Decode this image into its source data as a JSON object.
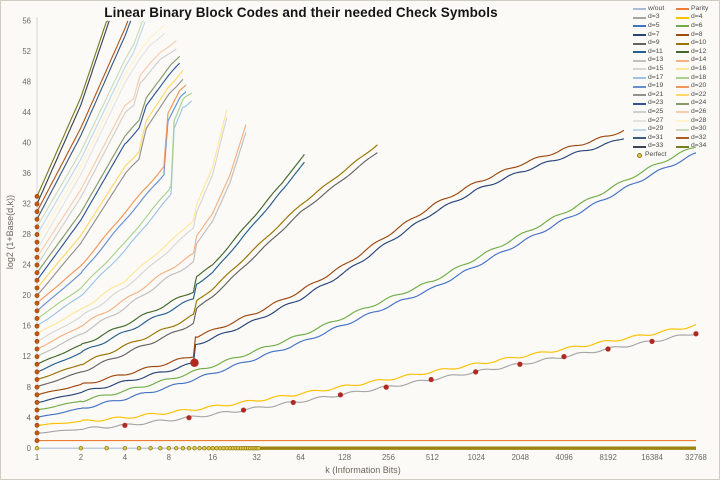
{
  "title": "Linear Binary Block Codes and their needed Check Symbols",
  "axes": {
    "x": {
      "label": "k (Information Bits)",
      "scale": "log2",
      "range": [
        1,
        32768
      ],
      "ticks": [
        1,
        2,
        4,
        8,
        16,
        32,
        64,
        128,
        256,
        512,
        1024,
        2048,
        4096,
        8192,
        16384,
        32768
      ]
    },
    "y": {
      "label": "log2  (1+Base(d,k))",
      "range": [
        0,
        56
      ],
      "ticks": [
        0,
        4,
        8,
        12,
        16,
        20,
        24,
        28,
        32,
        36,
        40,
        44,
        48,
        52,
        56
      ]
    }
  },
  "legend": {
    "left": [
      "w/out",
      "d=3",
      "d=5",
      "d=7",
      "d=9",
      "d=11",
      "d=13",
      "d=15",
      "d=17",
      "d=19",
      "d=21",
      "d=23",
      "d=25",
      "d=27",
      "d=29",
      "d=31",
      "d=33"
    ],
    "right": [
      "Parity",
      "d=4",
      "d=6",
      "d=8",
      "d=10",
      "d=12",
      "d=14",
      "d=16",
      "d=18",
      "d=20",
      "d=22",
      "d=24",
      "d=26",
      "d=28",
      "d=30",
      "d=32",
      "d=34"
    ],
    "perfect_label": "Perfect"
  },
  "chart_data": {
    "type": "line",
    "title": "Linear Binary Block Codes and their needed Check Symbols",
    "xlabel": "k (Information Bits)",
    "ylabel": "log2  (1+Base(d,k))",
    "x_scale": "log2",
    "xlim": [
      1,
      32768
    ],
    "ylim": [
      0,
      56
    ],
    "grid": false,
    "legend_position": "top-right",
    "note": "y = check symbols needed; anchor points are values read from the plot, lines interpolated in log2(k)",
    "series": [
      {
        "name": "w/out",
        "color": "#a9bcd6",
        "wiggle": false,
        "points": [
          [
            1,
            0
          ],
          [
            32768,
            0
          ]
        ]
      },
      {
        "name": "Parity",
        "color": "#ED7D31",
        "wiggle": false,
        "points": [
          [
            1,
            1
          ],
          [
            32768,
            1
          ]
        ]
      },
      {
        "name": "d=3",
        "color": "#A5A5A5",
        "points": [
          [
            1,
            2
          ],
          [
            2,
            2.5
          ],
          [
            4,
            3
          ],
          [
            11,
            4
          ],
          [
            26,
            5
          ],
          [
            57,
            6
          ],
          [
            120,
            7
          ],
          [
            247,
            8
          ],
          [
            502,
            9
          ],
          [
            1013,
            10
          ],
          [
            2036,
            11
          ],
          [
            4083,
            12
          ],
          [
            8178,
            13
          ],
          [
            16369,
            14
          ],
          [
            32768,
            15.1
          ]
        ]
      },
      {
        "name": "d=4",
        "color": "#FFC000",
        "base": "d=3",
        "offset": 1
      },
      {
        "name": "d=5",
        "color": "#4472C4",
        "points": [
          [
            1,
            4
          ],
          [
            2,
            5.2
          ],
          [
            4,
            6.5
          ],
          [
            8,
            8
          ],
          [
            16,
            9.8
          ],
          [
            32,
            11.8
          ],
          [
            64,
            13.8
          ],
          [
            128,
            16.2
          ],
          [
            256,
            18.6
          ],
          [
            512,
            20.9
          ],
          [
            1024,
            23.9
          ],
          [
            2048,
            26.9
          ],
          [
            4096,
            29.9
          ],
          [
            8192,
            32.9
          ],
          [
            16384,
            35.9
          ],
          [
            32768,
            38.6
          ]
        ]
      },
      {
        "name": "d=6",
        "color": "#70AD47",
        "base": "d=5",
        "offset": 1
      },
      {
        "name": "d=7",
        "color": "#264478",
        "points": [
          [
            1,
            6
          ],
          [
            2,
            7.3
          ],
          [
            4,
            8.7
          ],
          [
            8,
            10.2
          ],
          [
            11.8,
            11.1
          ],
          [
            12.2,
            13.6
          ],
          [
            16,
            14.4
          ],
          [
            32,
            16.8
          ],
          [
            64,
            19.6
          ],
          [
            128,
            23
          ],
          [
            256,
            27
          ],
          [
            512,
            30.8
          ],
          [
            1024,
            33.8
          ],
          [
            2048,
            36.2
          ],
          [
            4096,
            38.2
          ],
          [
            8192,
            39.9
          ],
          [
            10500,
            40.7
          ]
        ]
      },
      {
        "name": "d=8",
        "color": "#9E480E",
        "base": "d=7",
        "offset": 1
      },
      {
        "name": "d=9",
        "color": "#636363",
        "points": [
          [
            1,
            8
          ],
          [
            2,
            10
          ],
          [
            4,
            12.4
          ],
          [
            8,
            14.8
          ],
          [
            11.8,
            16.4
          ],
          [
            12.4,
            18.3
          ],
          [
            16,
            19.9
          ],
          [
            32,
            25.4
          ],
          [
            64,
            30.9
          ],
          [
            128,
            35.4
          ],
          [
            215,
            38.8
          ]
        ]
      },
      {
        "name": "d=10",
        "color": "#997300",
        "base": "d=9",
        "offset": 1
      },
      {
        "name": "d=11",
        "color": "#255E91",
        "points": [
          [
            1,
            10
          ],
          [
            2,
            12.5
          ],
          [
            4,
            15.2
          ],
          [
            8,
            18
          ],
          [
            11.8,
            19.6
          ],
          [
            12.4,
            21.5
          ],
          [
            16,
            23
          ],
          [
            32,
            29.8
          ],
          [
            48,
            33.8
          ],
          [
            68,
            37.5
          ]
        ]
      },
      {
        "name": "d=12",
        "color": "#43682B",
        "base": "d=11",
        "offset": 1
      },
      {
        "name": "d=13",
        "color": "#BFBFBF",
        "points": [
          [
            1,
            12
          ],
          [
            2,
            15
          ],
          [
            4,
            18.4
          ],
          [
            8,
            22.4
          ],
          [
            11.8,
            24.4
          ],
          [
            12.4,
            26.8
          ],
          [
            16,
            29.8
          ],
          [
            21,
            34.8
          ],
          [
            27,
            41.4
          ]
        ]
      },
      {
        "name": "d=14",
        "color": "#F4B183",
        "base": "d=13",
        "offset": 1
      },
      {
        "name": "d=15",
        "color": "#D6D6D6",
        "points": [
          [
            1,
            14
          ],
          [
            2,
            17.2
          ],
          [
            4,
            21
          ],
          [
            8,
            25.9
          ],
          [
            11.8,
            28.9
          ],
          [
            12.4,
            30.9
          ],
          [
            16,
            35.9
          ],
          [
            20,
            43.4
          ]
        ]
      },
      {
        "name": "d=16",
        "color": "#FFE699",
        "base": "d=15",
        "offset": 1
      },
      {
        "name": "d=17",
        "color": "#9DC3E6",
        "points": [
          [
            1,
            16
          ],
          [
            2,
            20
          ],
          [
            4,
            25.9
          ],
          [
            8,
            32.9
          ],
          [
            8.3,
            33.4
          ],
          [
            8.7,
            41.9
          ],
          [
            10,
            44.7
          ],
          [
            11.5,
            45.4
          ]
        ]
      },
      {
        "name": "d=18",
        "color": "#A9D18E",
        "base": "d=17",
        "offset": 1
      },
      {
        "name": "d=19",
        "color": "#698ED0",
        "points": [
          [
            1,
            18
          ],
          [
            2,
            22.9
          ],
          [
            4,
            29.9
          ],
          [
            7.4,
            35.9
          ],
          [
            7.9,
            42.9
          ],
          [
            9.5,
            45.9
          ],
          [
            10.5,
            46.7
          ]
        ]
      },
      {
        "name": "d=20",
        "color": "#F1975A",
        "base": "d=19",
        "offset": 1
      },
      {
        "name": "d=21",
        "color": "#929292",
        "points": [
          [
            1,
            20
          ],
          [
            2,
            26.9
          ],
          [
            4,
            35.9
          ],
          [
            5,
            37.9
          ],
          [
            5.6,
            41.9
          ],
          [
            8,
            46.4
          ],
          [
            10,
            48.4
          ]
        ]
      },
      {
        "name": "d=22",
        "color": "#FFD966",
        "base": "d=21",
        "offset": 1
      },
      {
        "name": "d=23",
        "color": "#2F5597",
        "points": [
          [
            1,
            22
          ],
          [
            2,
            29.9
          ],
          [
            4,
            39.9
          ],
          [
            5,
            41.9
          ],
          [
            5.6,
            44.9
          ],
          [
            8,
            48.9
          ],
          [
            9.5,
            50.4
          ]
        ]
      },
      {
        "name": "d=24",
        "color": "#87986A",
        "base": "d=23",
        "offset": 1
      },
      {
        "name": "d=25",
        "color": "#CFCFCF",
        "points": [
          [
            1,
            24
          ],
          [
            2,
            32.9
          ],
          [
            4,
            43.9
          ],
          [
            4.6,
            44.9
          ],
          [
            5.1,
            47.9
          ],
          [
            7,
            50.9
          ],
          [
            9,
            52.4
          ]
        ]
      },
      {
        "name": "d=26",
        "color": "#F8CBAD",
        "base": "d=25",
        "offset": 1
      },
      {
        "name": "d=27",
        "color": "#E3E3E3",
        "points": [
          [
            1,
            26
          ],
          [
            2,
            35.9
          ],
          [
            4,
            47.9
          ],
          [
            5,
            50.9
          ],
          [
            6,
            52.9
          ],
          [
            7.5,
            54.4
          ]
        ]
      },
      {
        "name": "d=28",
        "color": "#FFF2CC",
        "base": "d=27",
        "offset": 1
      },
      {
        "name": "d=29",
        "color": "#BDD7EE",
        "points": [
          [
            1,
            28
          ],
          [
            2,
            37.9
          ],
          [
            4,
            49.9
          ],
          [
            4.6,
            51.9
          ],
          [
            5.5,
            55.9
          ]
        ]
      },
      {
        "name": "d=30",
        "color": "#C9DDBA",
        "base": "d=29",
        "offset": 1
      },
      {
        "name": "d=31",
        "color": "#3D5C84",
        "points": [
          [
            1,
            30
          ],
          [
            2,
            41
          ],
          [
            4,
            54
          ],
          [
            4.5,
            56.6
          ]
        ]
      },
      {
        "name": "d=32",
        "color": "#AD5B22",
        "base": "d=31",
        "offset": 1
      },
      {
        "name": "d=33",
        "color": "#3A4557",
        "points": [
          [
            1,
            32
          ],
          [
            2,
            45
          ],
          [
            3.2,
            56.6
          ]
        ]
      },
      {
        "name": "d=34",
        "color": "#7C7C24",
        "base": "d=33",
        "offset": 1
      }
    ],
    "perfect_markers": {
      "axis_row": {
        "y": 0,
        "k_dots_from": 1,
        "k_dots_to": 33,
        "dense_line_from": 30,
        "dense_line_to": 32768,
        "dot_fill": "#e0c84f",
        "dot_ring": "#8f7d14",
        "dense_color": "#9c8412"
      },
      "k1_column": {
        "k": 1,
        "y_from": 1,
        "y_to": 33,
        "color": "#C55A11",
        "ring": "#8a3d08"
      },
      "hamming_on_d3": {
        "color": "#B02A22",
        "points": [
          [
            4,
            3
          ],
          [
            11,
            4
          ],
          [
            26,
            5
          ],
          [
            57,
            6
          ],
          [
            120,
            7
          ],
          [
            247,
            8
          ],
          [
            502,
            9
          ],
          [
            1013,
            10
          ],
          [
            2036,
            11
          ],
          [
            4083,
            12
          ],
          [
            8178,
            13
          ],
          [
            16369,
            14
          ],
          [
            32752,
            15
          ]
        ]
      },
      "golay": {
        "color": "#B02A22",
        "point": [
          12,
          11.2
        ],
        "large": true
      }
    }
  }
}
